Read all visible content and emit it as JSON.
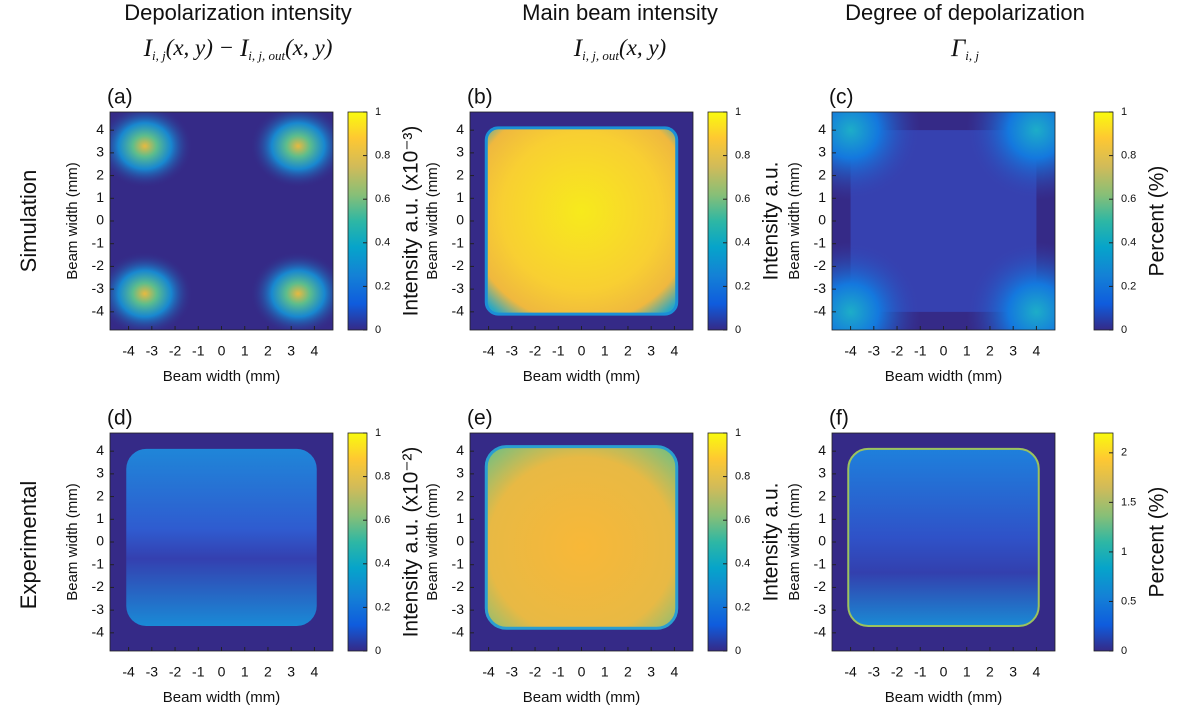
{
  "column_headers": [
    {
      "title": "Depolarization intensity",
      "formula": [
        {
          "base": "I",
          "sub": "i, j",
          "rest": "(x, y) − "
        },
        {
          "base": "I",
          "sub": "i, j, out",
          "rest": "(x, y)"
        }
      ]
    },
    {
      "title": "Main beam intensity",
      "formula": [
        {
          "base": "I",
          "sub": "i, j, out",
          "rest": "(x, y)"
        }
      ]
    },
    {
      "title": "Degree of depolarization",
      "formula": [
        {
          "base": "Γ",
          "sub": "i, j"
        }
      ]
    }
  ],
  "row_labels": [
    "Simulation",
    "Experimental"
  ],
  "panels": [
    {
      "label": "(a)",
      "xlabel": "Beam width (mm)",
      "ylabel": "Beam width (mm)",
      "xlim": [
        -4.8,
        4.8
      ],
      "ylim": [
        -4.8,
        4.8
      ],
      "xticks": [
        -4,
        -3,
        -2,
        -1,
        0,
        1,
        2,
        3,
        4
      ],
      "yticks": [
        4,
        3,
        2,
        1,
        0,
        -1,
        -2,
        -3,
        -4
      ],
      "colorbar": {
        "label": "Intensity a.u. (x10⁻³)",
        "lim": [
          0,
          1
        ],
        "ticks": [
          0,
          0.2,
          0.4,
          0.6,
          0.8,
          1
        ]
      }
    },
    {
      "label": "(b)",
      "xlabel": "Beam width (mm)",
      "ylabel": "Beam width (mm)",
      "xlim": [
        -4.8,
        4.8
      ],
      "ylim": [
        -4.8,
        4.8
      ],
      "xticks": [
        -4,
        -3,
        -2,
        -1,
        0,
        1,
        2,
        3,
        4
      ],
      "yticks": [
        4,
        3,
        2,
        1,
        0,
        -1,
        -2,
        -3,
        -4
      ],
      "colorbar": {
        "label": "Intensity a.u.",
        "lim": [
          0,
          1
        ],
        "ticks": [
          0,
          0.2,
          0.4,
          0.6,
          0.8,
          1
        ]
      }
    },
    {
      "label": "(c)",
      "xlabel": "Beam width (mm)",
      "ylabel": "Beam width (mm)",
      "xlim": [
        -4.8,
        4.8
      ],
      "ylim": [
        -4.8,
        4.8
      ],
      "xticks": [
        -4,
        -3,
        -2,
        -1,
        0,
        1,
        2,
        3,
        4
      ],
      "yticks": [
        4,
        3,
        2,
        1,
        0,
        -1,
        -2,
        -3,
        -4
      ],
      "colorbar": {
        "label": "Percent (%)",
        "lim": [
          0,
          1
        ],
        "ticks": [
          0,
          0.2,
          0.4,
          0.6,
          0.8,
          1
        ]
      }
    },
    {
      "label": "(d)",
      "xlabel": "Beam width (mm)",
      "ylabel": "Beam width (mm)",
      "xlim": [
        -4.8,
        4.8
      ],
      "ylim": [
        -4.8,
        4.8
      ],
      "xticks": [
        -4,
        -3,
        -2,
        -1,
        0,
        1,
        2,
        3,
        4
      ],
      "yticks": [
        4,
        3,
        2,
        1,
        0,
        -1,
        -2,
        -3,
        -4
      ],
      "colorbar": {
        "label": "Intensity a.u. (x10⁻²)",
        "lim": [
          0,
          1
        ],
        "ticks": [
          0,
          0.2,
          0.4,
          0.6,
          0.8,
          1
        ]
      }
    },
    {
      "label": "(e)",
      "xlabel": "Beam width (mm)",
      "ylabel": "Beam width (mm)",
      "xlim": [
        -4.8,
        4.8
      ],
      "ylim": [
        -4.8,
        4.8
      ],
      "xticks": [
        -4,
        -3,
        -2,
        -1,
        0,
        1,
        2,
        3,
        4
      ],
      "yticks": [
        4,
        3,
        2,
        1,
        0,
        -1,
        -2,
        -3,
        -4
      ],
      "colorbar": {
        "label": "Intensity a.u.",
        "lim": [
          0,
          1
        ],
        "ticks": [
          0,
          0.2,
          0.4,
          0.6,
          0.8,
          1
        ]
      }
    },
    {
      "label": "(f)",
      "xlabel": "Beam width (mm)",
      "ylabel": "Beam width (mm)",
      "xlim": [
        -4.8,
        4.8
      ],
      "ylim": [
        -4.8,
        4.8
      ],
      "xticks": [
        -4,
        -3,
        -2,
        -1,
        0,
        1,
        2,
        3,
        4
      ],
      "yticks": [
        4,
        3,
        2,
        1,
        0,
        -1,
        -2,
        -3,
        -4
      ],
      "colorbar": {
        "label": "Percent (%)",
        "lim": [
          0,
          2.2
        ],
        "ticks": [
          0,
          0.5,
          1,
          1.5,
          2
        ]
      }
    }
  ]
}
